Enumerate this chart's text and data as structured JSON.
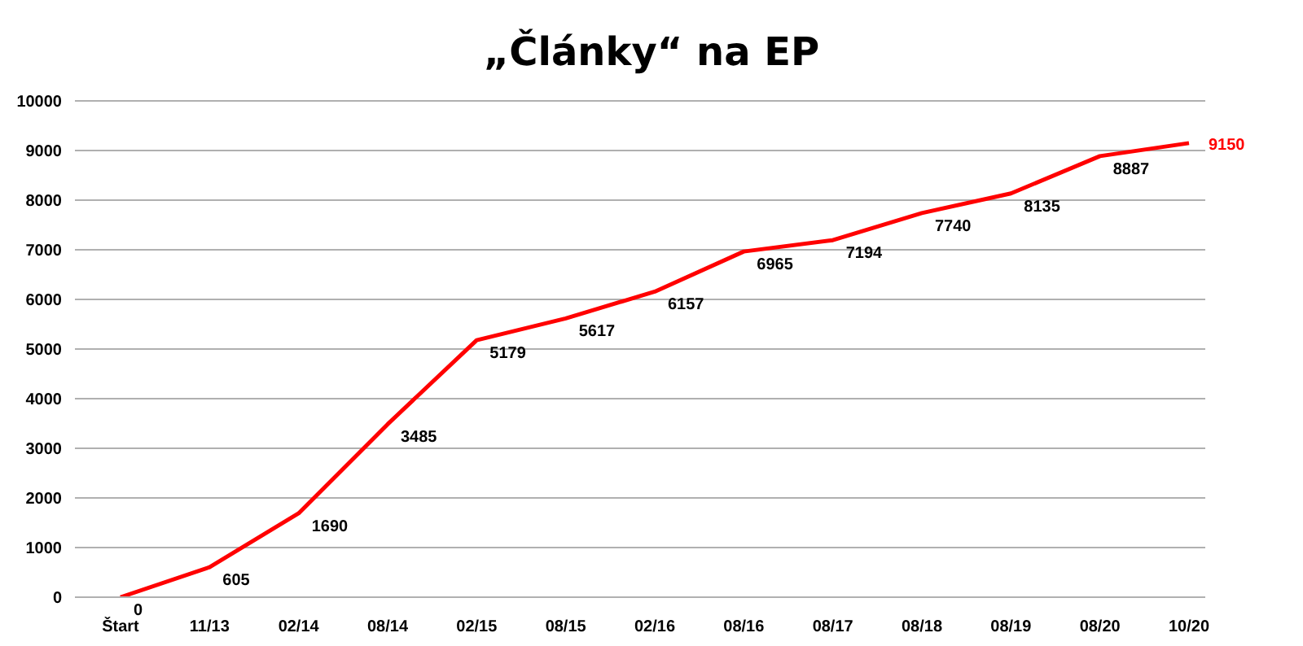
{
  "chart_data": {
    "type": "line",
    "title": "„Články“ na EP",
    "categories": [
      "Štart",
      "11/13",
      "02/14",
      "08/14",
      "02/15",
      "08/15",
      "02/16",
      "08/16",
      "08/17",
      "08/18",
      "08/19",
      "08/20",
      "10/20"
    ],
    "series": [
      {
        "color": "#ff0000",
        "values": [
          0,
          605,
          1690,
          3485,
          5179,
          5617,
          6157,
          6965,
          7194,
          7740,
          8135,
          8887,
          9150
        ]
      }
    ],
    "ylim": [
      0,
      10000
    ],
    "yticks": [
      0,
      1000,
      2000,
      3000,
      4000,
      5000,
      6000,
      7000,
      8000,
      9000,
      10000
    ],
    "grid": "y",
    "data_labels": true,
    "marker": "none",
    "line_style": "solid"
  }
}
